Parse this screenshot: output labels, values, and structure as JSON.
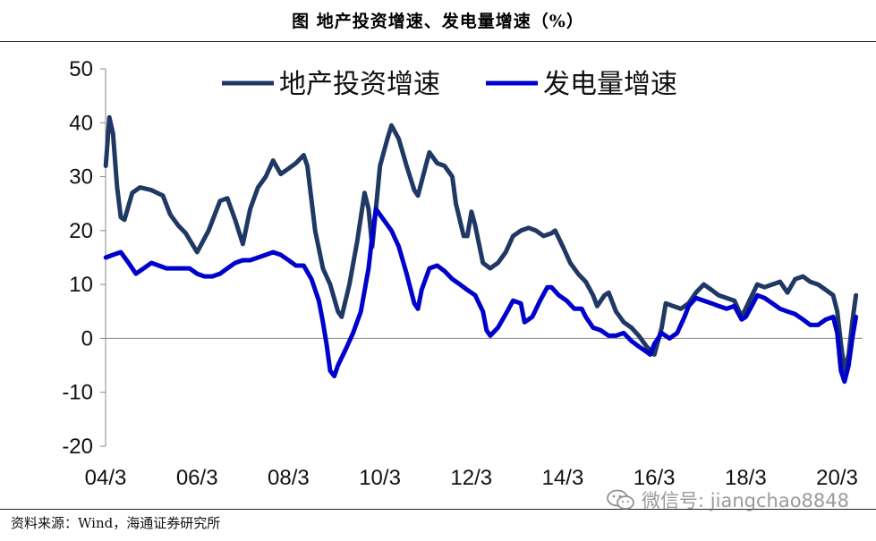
{
  "title": "图  地产投资增速、发电量增速（%）",
  "source": "资料来源：Wind，海通证券研究所",
  "watermark": "微信号: jiangchao8848",
  "chart_data": {
    "type": "line",
    "ylim": [
      -20,
      50
    ],
    "yticks": [
      -20,
      -10,
      0,
      10,
      20,
      30,
      40,
      50
    ],
    "xlim": [
      2004.167,
      2020.333
    ],
    "xticks": [
      {
        "label": "04/3",
        "x": 2004.167
      },
      {
        "label": "06/3",
        "x": 2006.167
      },
      {
        "label": "08/3",
        "x": 2008.167
      },
      {
        "label": "10/3",
        "x": 2010.167
      },
      {
        "label": "12/3",
        "x": 2012.167
      },
      {
        "label": "14/3",
        "x": 2014.167
      },
      {
        "label": "16/3",
        "x": 2016.167
      },
      {
        "label": "18/3",
        "x": 2018.167
      },
      {
        "label": "20/3",
        "x": 2020.167
      }
    ],
    "legend_position": "top",
    "series": [
      {
        "name": "地产投资增速",
        "color": "#1f3864",
        "points": [
          [
            2004.17,
            32
          ],
          [
            2004.25,
            41
          ],
          [
            2004.33,
            38
          ],
          [
            2004.42,
            28
          ],
          [
            2004.5,
            22.5
          ],
          [
            2004.58,
            22
          ],
          [
            2004.75,
            27
          ],
          [
            2004.92,
            28
          ],
          [
            2005.17,
            27.5
          ],
          [
            2005.42,
            26.5
          ],
          [
            2005.58,
            23
          ],
          [
            2005.75,
            21
          ],
          [
            2005.92,
            19.5
          ],
          [
            2006.17,
            16
          ],
          [
            2006.42,
            20
          ],
          [
            2006.67,
            25.5
          ],
          [
            2006.83,
            26
          ],
          [
            2007.0,
            22
          ],
          [
            2007.17,
            17.5
          ],
          [
            2007.33,
            24
          ],
          [
            2007.5,
            28
          ],
          [
            2007.67,
            30
          ],
          [
            2007.83,
            33
          ],
          [
            2008.0,
            30.5
          ],
          [
            2008.17,
            31.5
          ],
          [
            2008.33,
            32.5
          ],
          [
            2008.5,
            34
          ],
          [
            2008.58,
            32
          ],
          [
            2008.75,
            20
          ],
          [
            2008.92,
            13
          ],
          [
            2009.08,
            10
          ],
          [
            2009.25,
            5
          ],
          [
            2009.33,
            4
          ],
          [
            2009.5,
            10
          ],
          [
            2009.67,
            18
          ],
          [
            2009.83,
            27
          ],
          [
            2009.92,
            24
          ],
          [
            2010.0,
            17
          ],
          [
            2010.08,
            24
          ],
          [
            2010.17,
            32
          ],
          [
            2010.33,
            37
          ],
          [
            2010.42,
            39.5
          ],
          [
            2010.58,
            37
          ],
          [
            2010.75,
            32
          ],
          [
            2010.92,
            27.5
          ],
          [
            2011.0,
            26.5
          ],
          [
            2011.17,
            32
          ],
          [
            2011.25,
            34.5
          ],
          [
            2011.42,
            32.5
          ],
          [
            2011.58,
            32
          ],
          [
            2011.75,
            30
          ],
          [
            2011.83,
            25
          ],
          [
            2012.0,
            19
          ],
          [
            2012.08,
            19
          ],
          [
            2012.17,
            23.5
          ],
          [
            2012.25,
            21
          ],
          [
            2012.42,
            14
          ],
          [
            2012.58,
            13
          ],
          [
            2012.75,
            14
          ],
          [
            2012.92,
            16
          ],
          [
            2013.08,
            19
          ],
          [
            2013.25,
            20
          ],
          [
            2013.42,
            20.5
          ],
          [
            2013.58,
            20
          ],
          [
            2013.75,
            19
          ],
          [
            2013.92,
            19.5
          ],
          [
            2014.0,
            20
          ],
          [
            2014.17,
            17
          ],
          [
            2014.33,
            14
          ],
          [
            2014.5,
            12
          ],
          [
            2014.67,
            10.5
          ],
          [
            2014.83,
            8
          ],
          [
            2014.92,
            6
          ],
          [
            2015.08,
            8
          ],
          [
            2015.17,
            8.5
          ],
          [
            2015.33,
            5
          ],
          [
            2015.5,
            3
          ],
          [
            2015.67,
            2
          ],
          [
            2015.83,
            0.5
          ],
          [
            2016.0,
            -1.5
          ],
          [
            2016.17,
            -3
          ],
          [
            2016.33,
            2
          ],
          [
            2016.42,
            6.5
          ],
          [
            2016.58,
            6
          ],
          [
            2016.75,
            5.5
          ],
          [
            2016.92,
            6.5
          ],
          [
            2017.08,
            8.5
          ],
          [
            2017.25,
            10
          ],
          [
            2017.42,
            9
          ],
          [
            2017.58,
            8
          ],
          [
            2017.75,
            7.5
          ],
          [
            2017.92,
            7
          ],
          [
            2018.08,
            4
          ],
          [
            2018.25,
            7
          ],
          [
            2018.42,
            10
          ],
          [
            2018.58,
            9.5
          ],
          [
            2018.75,
            10
          ],
          [
            2018.92,
            10.5
          ],
          [
            2019.08,
            8.5
          ],
          [
            2019.25,
            11
          ],
          [
            2019.42,
            11.5
          ],
          [
            2019.58,
            10.5
          ],
          [
            2019.75,
            10
          ],
          [
            2019.92,
            9
          ],
          [
            2020.08,
            8
          ],
          [
            2020.17,
            5
          ],
          [
            2020.25,
            -1
          ],
          [
            2020.33,
            -6
          ],
          [
            2020.42,
            -3
          ],
          [
            2020.5,
            3
          ],
          [
            2020.58,
            8
          ]
        ]
      },
      {
        "name": "发电量增速",
        "color": "#0000cc",
        "points": [
          [
            2004.17,
            15
          ],
          [
            2004.33,
            15.5
          ],
          [
            2004.5,
            16
          ],
          [
            2004.67,
            14
          ],
          [
            2004.83,
            12
          ],
          [
            2005.0,
            13
          ],
          [
            2005.17,
            14
          ],
          [
            2005.33,
            13.5
          ],
          [
            2005.5,
            13
          ],
          [
            2005.67,
            13
          ],
          [
            2005.83,
            13
          ],
          [
            2006.0,
            13
          ],
          [
            2006.17,
            12
          ],
          [
            2006.33,
            11.5
          ],
          [
            2006.5,
            11.5
          ],
          [
            2006.67,
            12
          ],
          [
            2006.83,
            13
          ],
          [
            2007.0,
            14
          ],
          [
            2007.17,
            14.5
          ],
          [
            2007.33,
            14.5
          ],
          [
            2007.5,
            15
          ],
          [
            2007.67,
            15.5
          ],
          [
            2007.83,
            16
          ],
          [
            2008.0,
            15.5
          ],
          [
            2008.17,
            14.5
          ],
          [
            2008.33,
            13.5
          ],
          [
            2008.5,
            13.5
          ],
          [
            2008.67,
            11
          ],
          [
            2008.83,
            7
          ],
          [
            2008.92,
            3
          ],
          [
            2009.0,
            -1
          ],
          [
            2009.08,
            -6
          ],
          [
            2009.17,
            -7
          ],
          [
            2009.25,
            -5
          ],
          [
            2009.42,
            -2
          ],
          [
            2009.58,
            1
          ],
          [
            2009.75,
            5
          ],
          [
            2009.92,
            13
          ],
          [
            2010.0,
            19
          ],
          [
            2010.08,
            24
          ],
          [
            2010.25,
            22
          ],
          [
            2010.42,
            20
          ],
          [
            2010.58,
            17
          ],
          [
            2010.75,
            12
          ],
          [
            2010.92,
            6.5
          ],
          [
            2011.0,
            5.5
          ],
          [
            2011.08,
            9
          ],
          [
            2011.25,
            13
          ],
          [
            2011.42,
            13.5
          ],
          [
            2011.58,
            12.5
          ],
          [
            2011.75,
            11
          ],
          [
            2011.92,
            10
          ],
          [
            2012.08,
            9
          ],
          [
            2012.25,
            8
          ],
          [
            2012.42,
            5
          ],
          [
            2012.5,
            1.5
          ],
          [
            2012.58,
            0.5
          ],
          [
            2012.75,
            2
          ],
          [
            2012.92,
            4.5
          ],
          [
            2013.08,
            7
          ],
          [
            2013.25,
            6.5
          ],
          [
            2013.33,
            3
          ],
          [
            2013.5,
            4
          ],
          [
            2013.67,
            7
          ],
          [
            2013.83,
            9.5
          ],
          [
            2013.92,
            9.5
          ],
          [
            2014.08,
            8
          ],
          [
            2014.25,
            7
          ],
          [
            2014.42,
            5.5
          ],
          [
            2014.58,
            5.5
          ],
          [
            2014.67,
            4
          ],
          [
            2014.83,
            2
          ],
          [
            2015.0,
            1.5
          ],
          [
            2015.17,
            0.5
          ],
          [
            2015.33,
            0.5
          ],
          [
            2015.5,
            1
          ],
          [
            2015.67,
            -0.5
          ],
          [
            2015.83,
            -1.5
          ],
          [
            2016.0,
            -2.5
          ],
          [
            2016.08,
            -3
          ],
          [
            2016.17,
            -1
          ],
          [
            2016.33,
            1
          ],
          [
            2016.5,
            0
          ],
          [
            2016.67,
            1
          ],
          [
            2016.83,
            4
          ],
          [
            2016.92,
            6
          ],
          [
            2017.08,
            7.5
          ],
          [
            2017.25,
            7
          ],
          [
            2017.42,
            6.5
          ],
          [
            2017.58,
            6
          ],
          [
            2017.75,
            5.5
          ],
          [
            2017.92,
            6
          ],
          [
            2018.08,
            3.5
          ],
          [
            2018.17,
            4
          ],
          [
            2018.33,
            6.5
          ],
          [
            2018.42,
            8
          ],
          [
            2018.58,
            7.5
          ],
          [
            2018.75,
            6.5
          ],
          [
            2018.92,
            5.5
          ],
          [
            2019.08,
            5
          ],
          [
            2019.25,
            4.5
          ],
          [
            2019.42,
            3.5
          ],
          [
            2019.58,
            2.5
          ],
          [
            2019.75,
            2.5
          ],
          [
            2019.92,
            3.5
          ],
          [
            2020.08,
            4
          ],
          [
            2020.17,
            1
          ],
          [
            2020.25,
            -6
          ],
          [
            2020.33,
            -8
          ],
          [
            2020.42,
            -5
          ],
          [
            2020.5,
            0
          ],
          [
            2020.58,
            4
          ]
        ]
      }
    ]
  }
}
